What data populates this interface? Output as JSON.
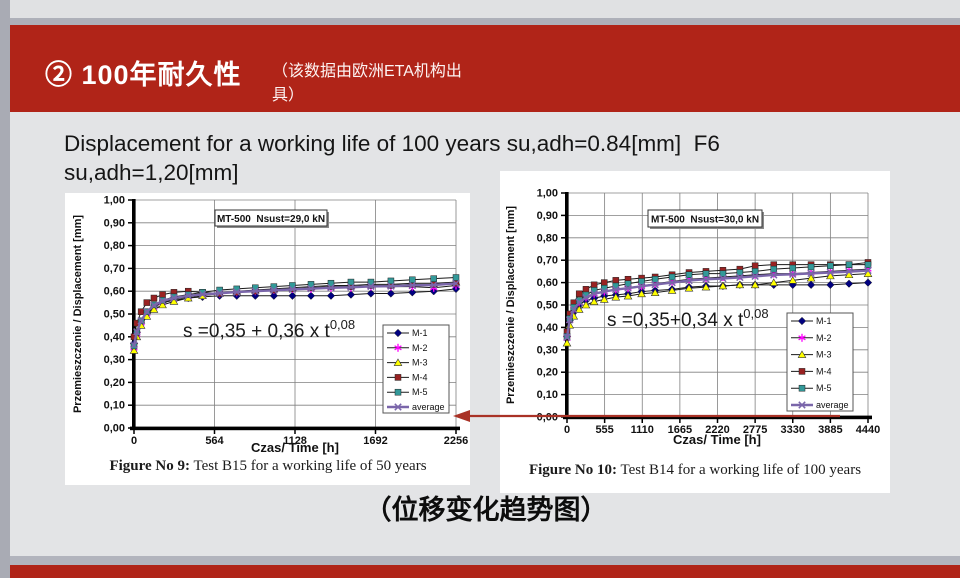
{
  "slide": {
    "header": {
      "title": "② 100年耐久性",
      "note_lines": [
        "（该数据由欧洲ETA机构出",
        "具）"
      ]
    },
    "title_lines": [
      "Displacement for a working life of 100 years su,adh=0.84[mm]  F6",
      "su,adh=1,20[mm]"
    ],
    "bottom_caption": "（位移变化趋势图）",
    "colors": {
      "header_red": "#b02418",
      "divider_gray": "#aeb0b9",
      "edge_gray": "#a9abb4",
      "slide_bg": "#e3e4e6",
      "arrow_red": "#a93226"
    }
  },
  "chart_data": [
    {
      "type": "line",
      "box_label": "MT-500  Nsust=29,0 kN",
      "equation": {
        "base": "s =0,35 + 0,36 x t",
        "sup": "0,08"
      },
      "xlabel": "Czas/ Time [h]",
      "ylabel": "Przemieszczenie / Displacement [mm]",
      "caption_bold": "Figure No 9:",
      "caption_rest": " Test B15 for a working life of 50 years",
      "xlim": [
        0,
        2256
      ],
      "ylim": [
        0,
        1
      ],
      "xticks": [
        0,
        564,
        1128,
        1692,
        2256
      ],
      "ytick_labels": [
        "0,00",
        "0,10",
        "0,20",
        "0,30",
        "0,40",
        "0,50",
        "0,60",
        "0,70",
        "0,80",
        "0,90",
        "1,00"
      ],
      "grid": true,
      "legend_position": "inside-right",
      "x": [
        0,
        20,
        50,
        90,
        140,
        200,
        280,
        380,
        480,
        600,
        720,
        850,
        980,
        1110,
        1240,
        1380,
        1520,
        1660,
        1800,
        1950,
        2100,
        2256
      ],
      "series": [
        {
          "name": "M-1",
          "color": "#000080",
          "marker": "diamond",
          "y": [
            0.37,
            0.42,
            0.46,
            0.5,
            0.53,
            0.55,
            0.56,
            0.57,
            0.575,
            0.58,
            0.58,
            0.58,
            0.58,
            0.58,
            0.58,
            0.58,
            0.585,
            0.59,
            0.59,
            0.595,
            0.6,
            0.61
          ]
        },
        {
          "name": "M-2",
          "color": "#ff00ff",
          "marker": "star",
          "y": [
            0.35,
            0.41,
            0.46,
            0.5,
            0.53,
            0.55,
            0.565,
            0.575,
            0.585,
            0.59,
            0.595,
            0.6,
            0.605,
            0.61,
            0.61,
            0.615,
            0.615,
            0.62,
            0.62,
            0.62,
            0.615,
            0.625
          ]
        },
        {
          "name": "M-3",
          "color": "#ffff00",
          "marker": "triangle",
          "y": [
            0.34,
            0.4,
            0.45,
            0.49,
            0.52,
            0.54,
            0.555,
            0.57,
            0.58,
            0.59,
            0.6,
            0.605,
            0.61,
            0.615,
            0.62,
            0.625,
            0.625,
            0.63,
            0.63,
            0.635,
            0.635,
            0.64
          ]
        },
        {
          "name": "M-4",
          "color": "#992222",
          "marker": "square",
          "y": [
            0.4,
            0.46,
            0.51,
            0.55,
            0.57,
            0.585,
            0.595,
            0.6,
            0.595,
            0.59,
            0.595,
            0.6,
            0.605,
            0.61,
            0.615,
            0.62,
            0.62,
            0.625,
            0.625,
            0.63,
            0.63,
            0.635
          ]
        },
        {
          "name": "M-5",
          "color": "#339999",
          "marker": "square",
          "y": [
            0.36,
            0.42,
            0.47,
            0.51,
            0.54,
            0.56,
            0.575,
            0.585,
            0.595,
            0.605,
            0.61,
            0.615,
            0.62,
            0.625,
            0.63,
            0.635,
            0.64,
            0.64,
            0.645,
            0.65,
            0.655,
            0.66
          ]
        },
        {
          "name": "average",
          "color": "#7a66aa",
          "marker": "xmark",
          "line_color": "#7a66aa",
          "line_width": 2.4,
          "y": [
            0.364,
            0.422,
            0.47,
            0.51,
            0.538,
            0.557,
            0.57,
            0.58,
            0.586,
            0.591,
            0.596,
            0.6,
            0.604,
            0.608,
            0.611,
            0.615,
            0.617,
            0.621,
            0.622,
            0.626,
            0.627,
            0.634
          ]
        }
      ]
    },
    {
      "type": "line",
      "box_label": "MT-500  Nsust=30,0 kN",
      "equation": {
        "base": "s =0,35+0,34 x t",
        "sup": "0,08"
      },
      "xlabel": "Czas/ Time [h]",
      "ylabel": "Przemieszczenie / Displacement [mm]",
      "caption_bold": "Figure No 10:",
      "caption_rest": " Test B14 for a working life of 100 years",
      "xlim": [
        0,
        4440
      ],
      "ylim": [
        0,
        1
      ],
      "xticks": [
        0,
        555,
        1110,
        1665,
        2220,
        2775,
        3330,
        3885,
        4440
      ],
      "ytick_labels": [
        "0,00",
        "0,10",
        "0,20",
        "0,30",
        "0,40",
        "0,50",
        "0,60",
        "0,70",
        "0,80",
        "0,90",
        "1,00"
      ],
      "grid": true,
      "legend_position": "inside-right",
      "x": [
        0,
        40,
        100,
        180,
        280,
        400,
        550,
        720,
        900,
        1100,
        1300,
        1550,
        1800,
        2050,
        2300,
        2550,
        2775,
        3050,
        3330,
        3600,
        3885,
        4160,
        4440
      ],
      "series": [
        {
          "name": "M-1",
          "color": "#000080",
          "marker": "diamond",
          "y": [
            0.36,
            0.43,
            0.47,
            0.5,
            0.52,
            0.53,
            0.54,
            0.545,
            0.55,
            0.56,
            0.565,
            0.57,
            0.58,
            0.585,
            0.585,
            0.59,
            0.59,
            0.59,
            0.59,
            0.59,
            0.59,
            0.595,
            0.6
          ]
        },
        {
          "name": "M-2",
          "color": "#ff00ff",
          "marker": "star",
          "y": [
            0.35,
            0.43,
            0.48,
            0.51,
            0.53,
            0.55,
            0.56,
            0.57,
            0.575,
            0.585,
            0.595,
            0.605,
            0.615,
            0.62,
            0.625,
            0.63,
            0.635,
            0.64,
            0.64,
            0.645,
            0.65,
            0.655,
            0.66
          ]
        },
        {
          "name": "M-3",
          "color": "#ffff00",
          "marker": "triangle",
          "y": [
            0.33,
            0.41,
            0.45,
            0.48,
            0.5,
            0.515,
            0.525,
            0.535,
            0.54,
            0.55,
            0.555,
            0.565,
            0.575,
            0.58,
            0.585,
            0.59,
            0.59,
            0.6,
            0.61,
            0.62,
            0.63,
            0.635,
            0.64
          ]
        },
        {
          "name": "M-4",
          "color": "#992222",
          "marker": "square",
          "y": [
            0.38,
            0.46,
            0.51,
            0.55,
            0.57,
            0.59,
            0.6,
            0.61,
            0.615,
            0.62,
            0.625,
            0.635,
            0.645,
            0.65,
            0.655,
            0.66,
            0.675,
            0.68,
            0.68,
            0.68,
            0.68,
            0.68,
            0.69
          ]
        },
        {
          "name": "M-5",
          "color": "#339999",
          "marker": "square",
          "y": [
            0.36,
            0.44,
            0.49,
            0.52,
            0.545,
            0.565,
            0.575,
            0.585,
            0.595,
            0.605,
            0.615,
            0.625,
            0.635,
            0.64,
            0.64,
            0.645,
            0.65,
            0.66,
            0.665,
            0.67,
            0.675,
            0.68,
            0.68
          ]
        },
        {
          "name": "average",
          "color": "#7a66aa",
          "marker": "xmark",
          "line_color": "#7a66aa",
          "line_width": 2.4,
          "y": [
            0.356,
            0.434,
            0.48,
            0.512,
            0.533,
            0.55,
            0.56,
            0.569,
            0.575,
            0.584,
            0.591,
            0.6,
            0.609,
            0.615,
            0.618,
            0.623,
            0.628,
            0.634,
            0.637,
            0.641,
            0.645,
            0.649,
            0.654
          ]
        }
      ]
    }
  ]
}
